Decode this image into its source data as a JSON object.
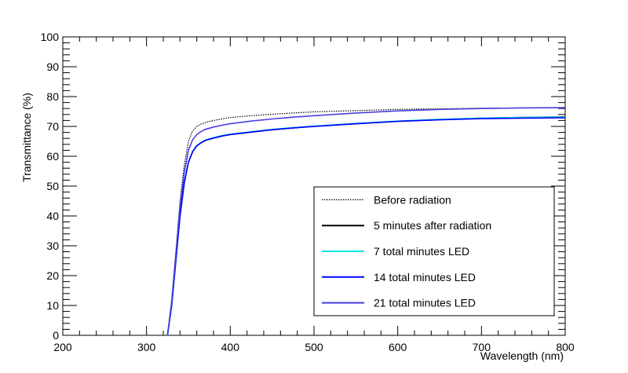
{
  "chart_data": {
    "type": "line",
    "xlabel": "Wavelength (nm)",
    "ylabel": "Transmittance (%)",
    "xlim": [
      200,
      800
    ],
    "ylim": [
      0,
      100
    ],
    "x_ticks": [
      "200",
      "300",
      "400",
      "500",
      "600",
      "700",
      "800"
    ],
    "y_ticks": [
      "0",
      "10",
      "20",
      "30",
      "40",
      "50",
      "60",
      "70",
      "80",
      "90",
      "100"
    ],
    "grid": false,
    "legend_position": "lower-right",
    "series": [
      {
        "name": "Before radiation",
        "color": "#000000",
        "style": "dotted",
        "x": [
          325,
          330,
          335,
          340,
          345,
          350,
          355,
          360,
          365,
          370,
          380,
          390,
          400,
          425,
          450,
          475,
          500,
          550,
          600,
          650,
          700,
          750,
          800
        ],
        "y": [
          0,
          12,
          28,
          45,
          57,
          65,
          68.5,
          70,
          70.8,
          71.3,
          72,
          72.5,
          73,
          73.6,
          74.1,
          74.5,
          74.9,
          75.3,
          75.7,
          75.9,
          76.1,
          76.2,
          76.3
        ]
      },
      {
        "name": "5 minutes after radiation",
        "color": "#000000",
        "style": "solid",
        "x": [
          325,
          330,
          335,
          340,
          345,
          350,
          355,
          360,
          365,
          370,
          380,
          390,
          400,
          425,
          450,
          475,
          500,
          550,
          600,
          650,
          700,
          750,
          800
        ],
        "y": [
          0,
          10,
          25,
          40,
          51,
          58,
          61.5,
          63.5,
          64.5,
          65.3,
          66.1,
          66.8,
          67.3,
          68.1,
          68.9,
          69.5,
          70,
          70.9,
          71.7,
          72.3,
          72.8,
          73,
          73.2
        ]
      },
      {
        "name": "7 total minutes LED",
        "color": "#00e5e5",
        "style": "solid",
        "x": [
          325,
          330,
          335,
          340,
          345,
          350,
          355,
          360,
          365,
          370,
          380,
          390,
          400,
          425,
          450,
          475,
          500,
          550,
          600,
          650,
          700,
          750,
          800
        ],
        "y": [
          0,
          10,
          25,
          40,
          51,
          58,
          61.6,
          63.6,
          64.6,
          65.4,
          66.2,
          66.9,
          67.4,
          68.2,
          69,
          69.6,
          70.1,
          71,
          71.8,
          72.4,
          72.8,
          73,
          73.1
        ]
      },
      {
        "name": "14 total minutes LED",
        "color": "#0000ff",
        "style": "solid",
        "x": [
          325,
          330,
          335,
          340,
          345,
          350,
          355,
          360,
          365,
          370,
          380,
          390,
          400,
          425,
          450,
          475,
          500,
          550,
          600,
          650,
          700,
          750,
          800
        ],
        "y": [
          0,
          10,
          25,
          40,
          51,
          58,
          61.5,
          63.5,
          64.5,
          65.3,
          66.1,
          66.8,
          67.3,
          68.1,
          68.9,
          69.5,
          70,
          70.9,
          71.7,
          72.2,
          72.6,
          72.8,
          72.9
        ]
      },
      {
        "name": "21 total minutes LED",
        "color": "#4a3fe0",
        "style": "solid",
        "x": [
          325,
          330,
          335,
          340,
          345,
          350,
          355,
          360,
          365,
          370,
          380,
          390,
          400,
          425,
          450,
          475,
          500,
          550,
          600,
          650,
          700,
          750,
          800
        ],
        "y": [
          0,
          11,
          27,
          43,
          54.5,
          62,
          65.5,
          67.3,
          68.3,
          69,
          69.8,
          70.4,
          70.9,
          71.8,
          72.5,
          73.1,
          73.6,
          74.5,
          75.2,
          75.7,
          76,
          76.2,
          76.3
        ]
      }
    ]
  }
}
